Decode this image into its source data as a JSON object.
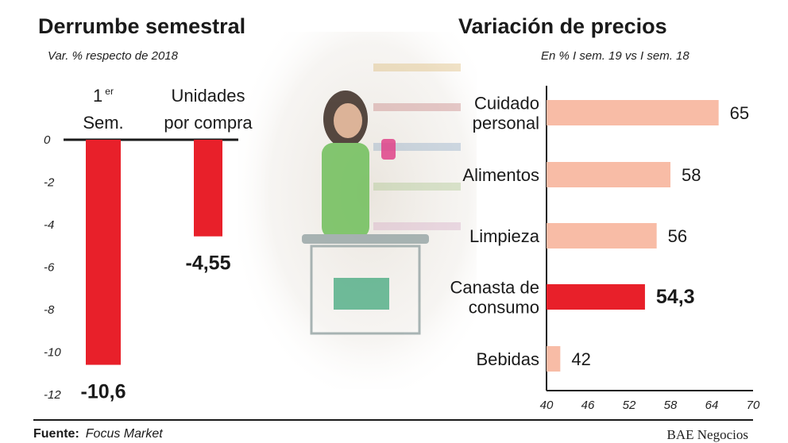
{
  "left_panel": {
    "title": "Derrumbe semestral",
    "subtitle": "Var. % respecto de 2018"
  },
  "right_panel": {
    "title": "Variación de precios",
    "subtitle": "En % I sem. 19 vs I sem. 18"
  },
  "footer": {
    "source_label": "Fuente:",
    "source_value": "Focus Market",
    "brand": "BAE Negocios"
  },
  "colors": {
    "red": "#e8202a",
    "salmon": "#f8bca6",
    "axis": "#1a1a1a"
  },
  "chart_data": [
    {
      "type": "bar",
      "orientation": "vertical",
      "title": "Derrumbe semestral",
      "subtitle": "Var. % respecto de 2018",
      "categories": [
        {
          "line1": "1",
          "sup": "er",
          "line2": "Sem."
        },
        {
          "line1": "Unidades",
          "sup": "",
          "line2": "por compra"
        }
      ],
      "values": [
        -10.6,
        -4.55
      ],
      "value_labels": [
        "-10,6",
        "-4,55"
      ],
      "ylim": [
        -12,
        0
      ],
      "yticks": [
        "0",
        "-2",
        "-4",
        "-6",
        "-8",
        "-10",
        "-12"
      ],
      "ytick_values": [
        0,
        -2,
        -4,
        -6,
        -8,
        -10,
        -12
      ],
      "color": "#e8202a",
      "grid": false
    },
    {
      "type": "bar",
      "orientation": "horizontal",
      "title": "Variación de precios",
      "subtitle": "En % I sem. 19 vs I sem. 18",
      "categories": [
        [
          "Cuidado",
          "personal"
        ],
        [
          "Alimentos"
        ],
        [
          "Limpieza"
        ],
        [
          "Canasta de",
          "consumo"
        ],
        [
          "Bebidas"
        ]
      ],
      "values": [
        65,
        58,
        56,
        54.3,
        42
      ],
      "value_labels": [
        "65",
        "58",
        "56",
        "54,3",
        "42"
      ],
      "highlight_index": 3,
      "xlim": [
        40,
        70
      ],
      "xticks": [
        "40",
        "46",
        "52",
        "58",
        "64",
        "70"
      ],
      "xtick_values": [
        40,
        46,
        52,
        58,
        64,
        70
      ],
      "color": "#f8bca6",
      "highlight_color": "#e8202a",
      "grid": false
    }
  ]
}
